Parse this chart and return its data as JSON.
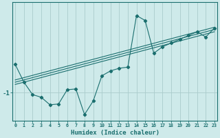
{
  "xlabel": "Humidex (Indice chaleur)",
  "bg_color": "#ceeaea",
  "line_color": "#1a6e6e",
  "grid_color": "#aacccc",
  "axis_color": "#1a6e6e",
  "tick_color": "#1a6e6e",
  "x_ticks": [
    0,
    1,
    2,
    3,
    4,
    5,
    6,
    7,
    8,
    9,
    10,
    11,
    12,
    13,
    14,
    15,
    16,
    17,
    18,
    19,
    20,
    21,
    22,
    23
  ],
  "y_ticks": [
    -1
  ],
  "xlim": [
    -0.3,
    23.3
  ],
  "ylim": [
    -1.75,
    1.4
  ],
  "line1_x": [
    0,
    1,
    2,
    3,
    4,
    5,
    6,
    7,
    8,
    9,
    10,
    11,
    12,
    13,
    14,
    15,
    16,
    17,
    18,
    19,
    20,
    21,
    22,
    23
  ],
  "line1_y": [
    -0.25,
    -0.72,
    -1.05,
    -1.12,
    -1.32,
    -1.3,
    -0.92,
    -0.9,
    -1.58,
    -1.22,
    -0.55,
    -0.42,
    -0.35,
    -0.32,
    1.05,
    0.92,
    0.05,
    0.22,
    0.32,
    0.42,
    0.52,
    0.62,
    0.48,
    0.72
  ],
  "trend_x": [
    0,
    23
  ],
  "trend_offsets": [
    -0.06,
    0.0,
    0.06
  ],
  "trend_y_start": -0.72,
  "trend_y_end": 0.68
}
